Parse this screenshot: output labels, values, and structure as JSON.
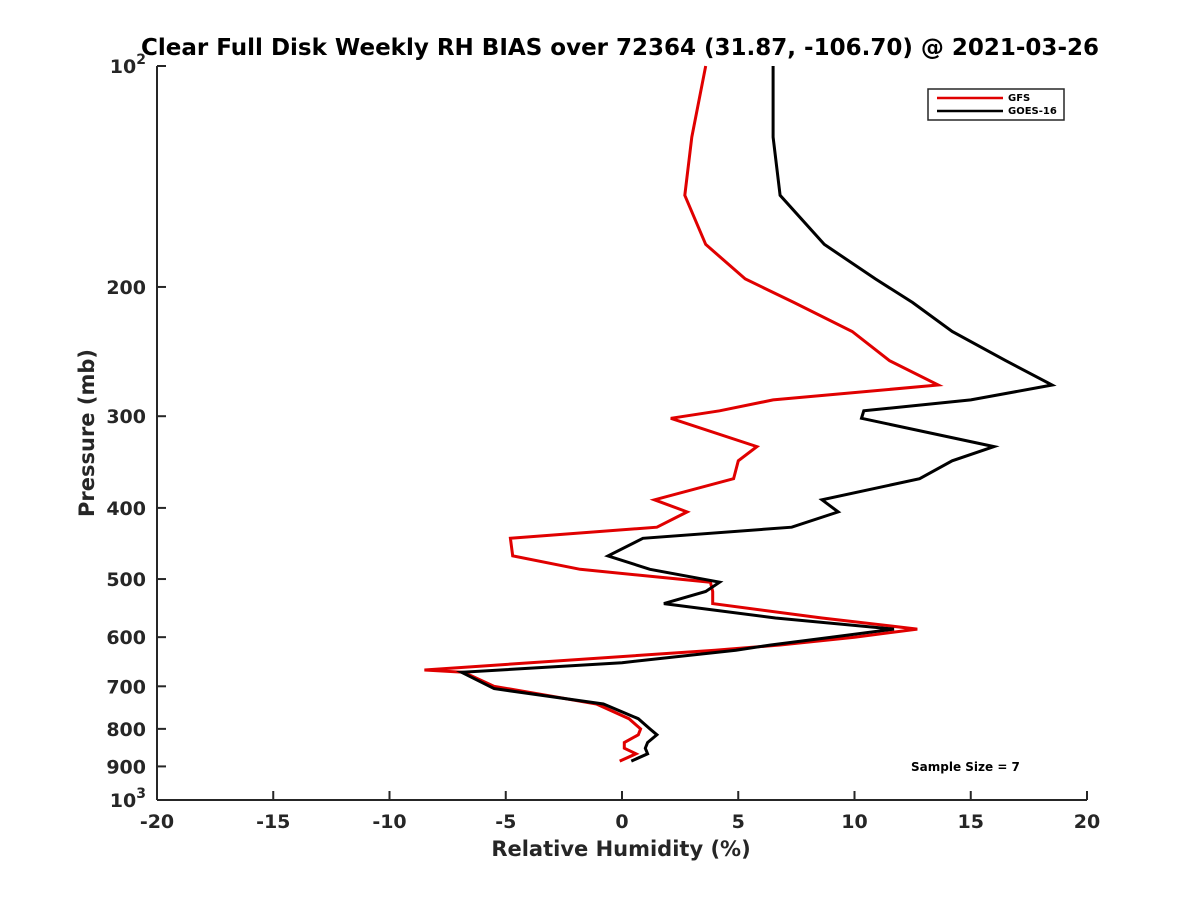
{
  "chart_data": {
    "type": "line",
    "title": "Clear Full Disk Weekly RH BIAS over 72364 (31.87, -106.70) @ 2021-03-26",
    "xlabel": "Relative Humidity (%)",
    "ylabel": "Pressure (mb)",
    "xlim": [
      -20,
      20
    ],
    "ylim": [
      100,
      1000
    ],
    "y_scale": "log",
    "y_reversed": true,
    "grid": false,
    "legend_position": "top-right",
    "annotation": "Sample Size = 7",
    "x_ticks": [
      "-20",
      "-15",
      "-10",
      "-5",
      "0",
      "5",
      "10",
      "15",
      "20"
    ],
    "y_ticks": [
      {
        "value": 100,
        "base": "10",
        "exp": "2"
      },
      {
        "value": 200,
        "label": "200"
      },
      {
        "value": 300,
        "label": "300"
      },
      {
        "value": 400,
        "label": "400"
      },
      {
        "value": 500,
        "label": "500"
      },
      {
        "value": 600,
        "label": "600"
      },
      {
        "value": 700,
        "label": "700"
      },
      {
        "value": 800,
        "label": "800"
      },
      {
        "value": 900,
        "label": "900"
      },
      {
        "value": 1000,
        "base": "10",
        "exp": "3"
      }
    ],
    "series": [
      {
        "name": "GFS",
        "color": "#e00000",
        "points": [
          [
            3.6,
            100
          ],
          [
            3.0,
            125
          ],
          [
            2.7,
            150
          ],
          [
            3.6,
            175
          ],
          [
            5.3,
            195
          ],
          [
            7.4,
            210
          ],
          [
            9.9,
            230
          ],
          [
            11.5,
            252
          ],
          [
            13.6,
            272
          ],
          [
            6.5,
            285
          ],
          [
            4.2,
            295
          ],
          [
            2.1,
            302
          ],
          [
            5.8,
            330
          ],
          [
            5.0,
            345
          ],
          [
            4.8,
            365
          ],
          [
            1.4,
            390
          ],
          [
            2.8,
            405
          ],
          [
            1.5,
            425
          ],
          [
            -4.8,
            440
          ],
          [
            -4.7,
            465
          ],
          [
            -1.8,
            485
          ],
          [
            3.8,
            505
          ],
          [
            3.9,
            520
          ],
          [
            3.9,
            540
          ],
          [
            8.6,
            565
          ],
          [
            12.7,
            585
          ],
          [
            10.0,
            600
          ],
          [
            6.8,
            615
          ],
          [
            4.0,
            625
          ],
          [
            -8.5,
            665
          ],
          [
            -6.8,
            670
          ],
          [
            -5.5,
            700
          ],
          [
            -1.1,
            740
          ],
          [
            0.3,
            775
          ],
          [
            0.8,
            800
          ],
          [
            0.7,
            815
          ],
          [
            0.1,
            835
          ],
          [
            0.1,
            850
          ],
          [
            0.6,
            865
          ],
          [
            -0.1,
            885
          ]
        ]
      },
      {
        "name": "GOES-16",
        "color": "#000000",
        "points": [
          [
            6.5,
            100
          ],
          [
            6.5,
            125
          ],
          [
            6.8,
            150
          ],
          [
            8.7,
            175
          ],
          [
            10.9,
            195
          ],
          [
            12.5,
            210
          ],
          [
            14.2,
            230
          ],
          [
            16.5,
            252
          ],
          [
            18.5,
            272
          ],
          [
            15.0,
            285
          ],
          [
            10.4,
            295
          ],
          [
            10.3,
            302
          ],
          [
            16.0,
            330
          ],
          [
            14.2,
            345
          ],
          [
            12.8,
            365
          ],
          [
            8.6,
            390
          ],
          [
            9.3,
            405
          ],
          [
            7.3,
            425
          ],
          [
            0.9,
            440
          ],
          [
            -0.6,
            465
          ],
          [
            1.2,
            485
          ],
          [
            4.2,
            505
          ],
          [
            3.6,
            520
          ],
          [
            1.8,
            540
          ],
          [
            6.6,
            565
          ],
          [
            11.7,
            585
          ],
          [
            9.0,
            600
          ],
          [
            6.4,
            615
          ],
          [
            4.9,
            625
          ],
          [
            0.0,
            650
          ],
          [
            -6.9,
            670
          ],
          [
            -5.5,
            705
          ],
          [
            -0.8,
            740
          ],
          [
            0.7,
            775
          ],
          [
            1.2,
            800
          ],
          [
            1.5,
            815
          ],
          [
            1.1,
            835
          ],
          [
            1.0,
            850
          ],
          [
            1.1,
            865
          ],
          [
            0.4,
            885
          ]
        ]
      }
    ]
  }
}
